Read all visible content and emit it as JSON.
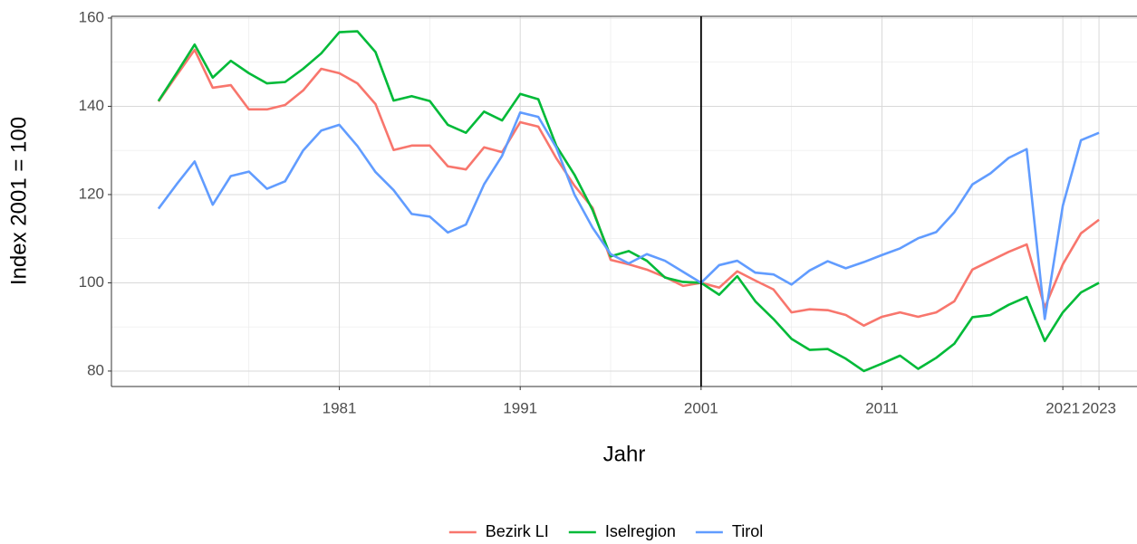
{
  "chart_data": {
    "type": "line",
    "x_label": "Jahr",
    "y_label": "Index 2001 = 100",
    "x": [
      1971,
      1972,
      1973,
      1974,
      1975,
      1976,
      1977,
      1978,
      1979,
      1980,
      1981,
      1982,
      1983,
      1984,
      1985,
      1986,
      1987,
      1988,
      1989,
      1990,
      1991,
      1992,
      1993,
      1994,
      1995,
      1996,
      1997,
      1998,
      1999,
      2000,
      2001,
      2002,
      2003,
      2004,
      2005,
      2006,
      2007,
      2008,
      2009,
      2010,
      2011,
      2012,
      2013,
      2014,
      2015,
      2016,
      2017,
      2018,
      2019,
      2020,
      2021,
      2022,
      2023
    ],
    "series": [
      {
        "name": "Bezirk LI",
        "color": "#F8766D",
        "values": [
          141.1,
          147,
          152.8,
          144.2,
          144.8,
          139.3,
          139.3,
          140.3,
          143.6,
          148.5,
          147.5,
          145.2,
          140.5,
          130.1,
          131.1,
          131.1,
          126.4,
          125.7,
          130.7,
          129.6,
          136.4,
          135.4,
          128.2,
          122,
          117,
          105.2,
          104.2,
          103,
          101.3,
          99.3,
          100,
          98.9,
          102.6,
          100.5,
          98.5,
          93.3,
          94,
          93.8,
          92.7,
          90.3,
          92.3,
          93.3,
          92.3,
          93.3,
          95.8,
          103,
          105,
          107,
          108.7,
          94.4,
          104.2,
          111.2,
          114.3
        ]
      },
      {
        "name": "Iselregion",
        "color": "#00BA38",
        "values": [
          141.2,
          147.5,
          154,
          146.5,
          150.3,
          147.5,
          145.2,
          145.5,
          148.5,
          152,
          156.8,
          157,
          152.3,
          141.3,
          142.3,
          141.2,
          135.8,
          134,
          138.8,
          136.8,
          142.8,
          141.6,
          131,
          124.5,
          116.5,
          106,
          107.2,
          105,
          101.2,
          100.2,
          100,
          97.3,
          101.5,
          95.8,
          91.8,
          87.3,
          84.8,
          85,
          82.8,
          80,
          81.7,
          83.5,
          80.5,
          83,
          86.2,
          92.2,
          92.7,
          95,
          96.8,
          86.8,
          93.3,
          97.8,
          100
        ]
      },
      {
        "name": "Tirol",
        "color": "#619CFF",
        "values": [
          116.8,
          122.3,
          127.5,
          117.7,
          124.2,
          125.2,
          121.3,
          123,
          130,
          134.5,
          135.8,
          131,
          125.1,
          121,
          115.6,
          115,
          111.4,
          113.2,
          122.3,
          128.8,
          138.6,
          137.6,
          130.6,
          120,
          112.5,
          106.5,
          104.4,
          106.5,
          105,
          102.5,
          100,
          104,
          105,
          102.3,
          101.9,
          99.6,
          102.8,
          104.9,
          103.3,
          104.7,
          106.3,
          107.8,
          110.1,
          111.5,
          116,
          122.3,
          124.8,
          128.3,
          130.3,
          91.8,
          117.5,
          132.3,
          134
        ]
      }
    ],
    "xlim": [
      1968.4,
      2025.1
    ],
    "ylim": [
      76.5,
      160.4
    ],
    "xticks": [
      1981,
      1991,
      2001,
      2011,
      2021,
      2023
    ],
    "x_minor_grid": [
      1976,
      1986,
      1996,
      2006,
      2016,
      2022
    ],
    "yticks": [
      80,
      100,
      120,
      140,
      160
    ],
    "y_minor_grid": [
      90,
      110,
      130,
      150
    ],
    "vline": 2001,
    "grid": true,
    "legend": "bottom"
  }
}
